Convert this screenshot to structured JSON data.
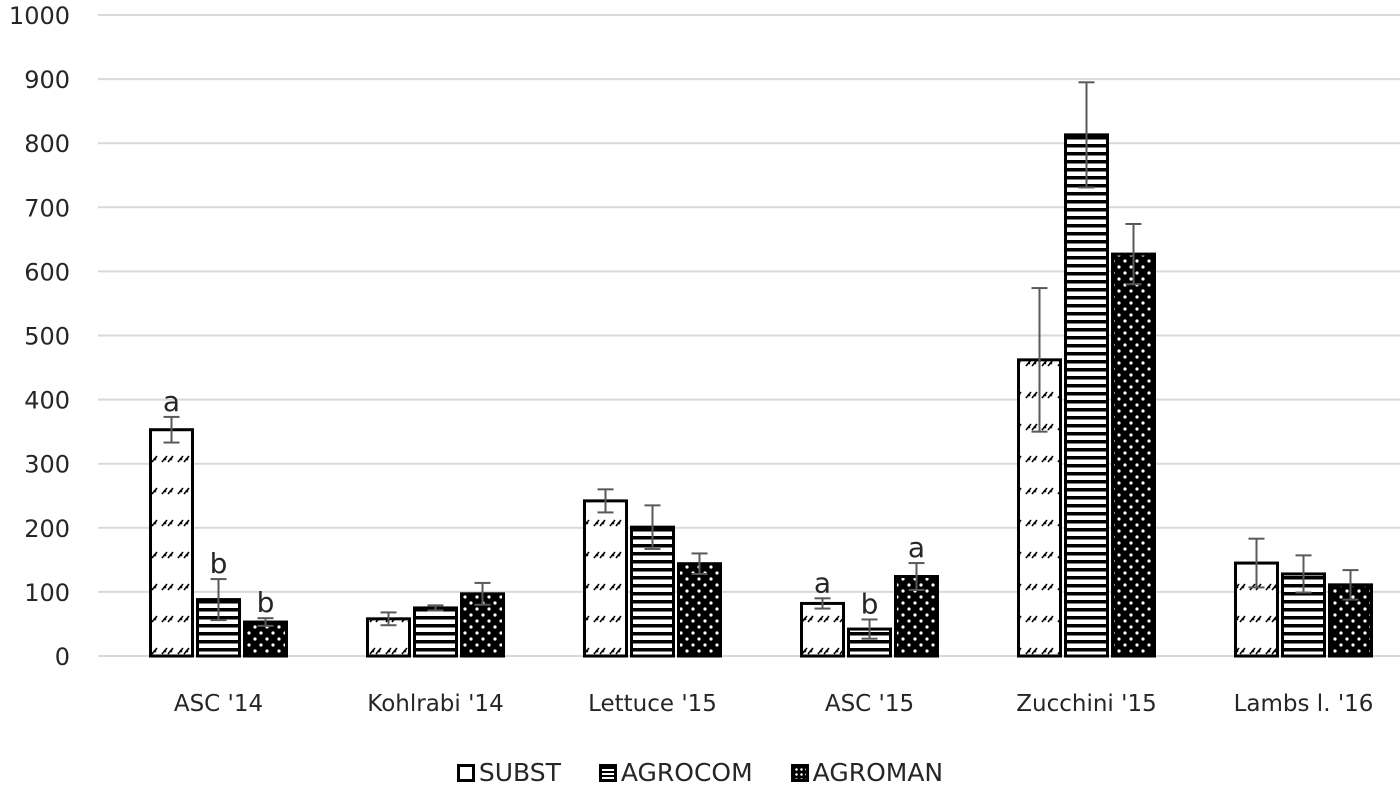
{
  "chart_data": {
    "type": "bar",
    "title": "",
    "xlabel": "",
    "ylabel": "",
    "ylim": [
      0,
      1000
    ],
    "yticks": [
      0,
      100,
      200,
      300,
      400,
      500,
      600,
      700,
      800,
      900,
      1000
    ],
    "grid": true,
    "legend_position": "bottom",
    "categories": [
      "ASC '14",
      "Kohlrabi '14",
      "Lettuce '15",
      "ASC '15",
      "Zucchini '15",
      "Lambs l. '16"
    ],
    "series": [
      {
        "name": "SUBST",
        "pattern": "hatched-dashes",
        "values": [
          353,
          58,
          242,
          82,
          462,
          145
        ],
        "errors": [
          20,
          10,
          18,
          8,
          112,
          38
        ],
        "significance": [
          "a",
          "",
          "",
          "a",
          "",
          ""
        ]
      },
      {
        "name": "AGROCOM",
        "pattern": "horizontal-lines",
        "values": [
          88,
          75,
          201,
          42,
          813,
          128
        ],
        "errors": [
          32,
          4,
          34,
          15,
          82,
          29
        ],
        "significance": [
          "b",
          "",
          "",
          "b",
          "",
          ""
        ]
      },
      {
        "name": "AGROMAN",
        "pattern": "dots-on-black",
        "values": [
          53,
          97,
          144,
          124,
          627,
          111
        ],
        "errors": [
          6,
          17,
          16,
          21,
          47,
          23
        ],
        "significance": [
          "b",
          "",
          "",
          "a",
          "",
          ""
        ]
      }
    ]
  },
  "legend": {
    "items": [
      {
        "label": "SUBST"
      },
      {
        "label": "AGROCOM"
      },
      {
        "label": "AGROMAN"
      }
    ]
  },
  "colors": {
    "grid": "#d9d9d9",
    "bar_border": "#000000",
    "error_bar": "#595959",
    "text": "#262626"
  }
}
